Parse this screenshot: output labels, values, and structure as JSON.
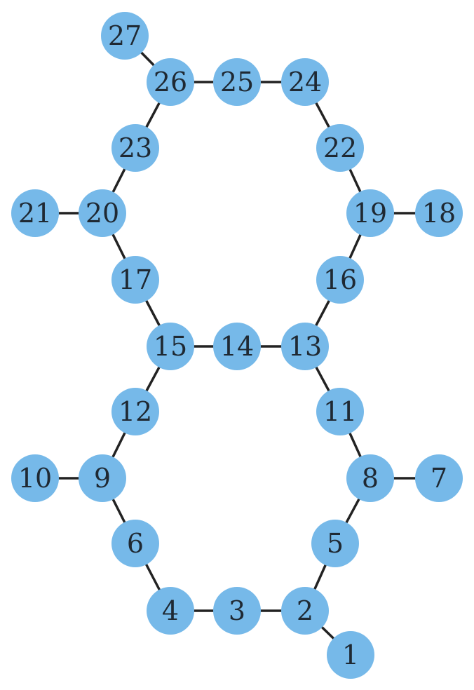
{
  "graph": {
    "node_color": "#76b9e9",
    "edge_color": "#222222",
    "label_color": "#1f2933",
    "nodes": [
      {
        "id": "1",
        "label": "1"
      },
      {
        "id": "2",
        "label": "2"
      },
      {
        "id": "3",
        "label": "3"
      },
      {
        "id": "4",
        "label": "4"
      },
      {
        "id": "5",
        "label": "5"
      },
      {
        "id": "6",
        "label": "6"
      },
      {
        "id": "7",
        "label": "7"
      },
      {
        "id": "8",
        "label": "8"
      },
      {
        "id": "9",
        "label": "9"
      },
      {
        "id": "10",
        "label": "10"
      },
      {
        "id": "11",
        "label": "11"
      },
      {
        "id": "12",
        "label": "12"
      },
      {
        "id": "13",
        "label": "13"
      },
      {
        "id": "14",
        "label": "14"
      },
      {
        "id": "15",
        "label": "15"
      },
      {
        "id": "16",
        "label": "16"
      },
      {
        "id": "17",
        "label": "17"
      },
      {
        "id": "18",
        "label": "18"
      },
      {
        "id": "19",
        "label": "19"
      },
      {
        "id": "20",
        "label": "20"
      },
      {
        "id": "21",
        "label": "21"
      },
      {
        "id": "22",
        "label": "22"
      },
      {
        "id": "23",
        "label": "23"
      },
      {
        "id": "24",
        "label": "24"
      },
      {
        "id": "25",
        "label": "25"
      },
      {
        "id": "26",
        "label": "26"
      },
      {
        "id": "27",
        "label": "27"
      }
    ],
    "edges": [
      [
        "1",
        "2"
      ],
      [
        "2",
        "3"
      ],
      [
        "3",
        "4"
      ],
      [
        "4",
        "6"
      ],
      [
        "6",
        "9"
      ],
      [
        "9",
        "10"
      ],
      [
        "9",
        "12"
      ],
      [
        "12",
        "15"
      ],
      [
        "2",
        "5"
      ],
      [
        "5",
        "8"
      ],
      [
        "8",
        "7"
      ],
      [
        "8",
        "11"
      ],
      [
        "11",
        "13"
      ],
      [
        "13",
        "14"
      ],
      [
        "14",
        "15"
      ],
      [
        "15",
        "17"
      ],
      [
        "17",
        "20"
      ],
      [
        "20",
        "21"
      ],
      [
        "20",
        "23"
      ],
      [
        "23",
        "26"
      ],
      [
        "26",
        "27"
      ],
      [
        "26",
        "25"
      ],
      [
        "25",
        "24"
      ],
      [
        "24",
        "22"
      ],
      [
        "22",
        "19"
      ],
      [
        "19",
        "18"
      ],
      [
        "19",
        "16"
      ],
      [
        "16",
        "13"
      ]
    ]
  }
}
